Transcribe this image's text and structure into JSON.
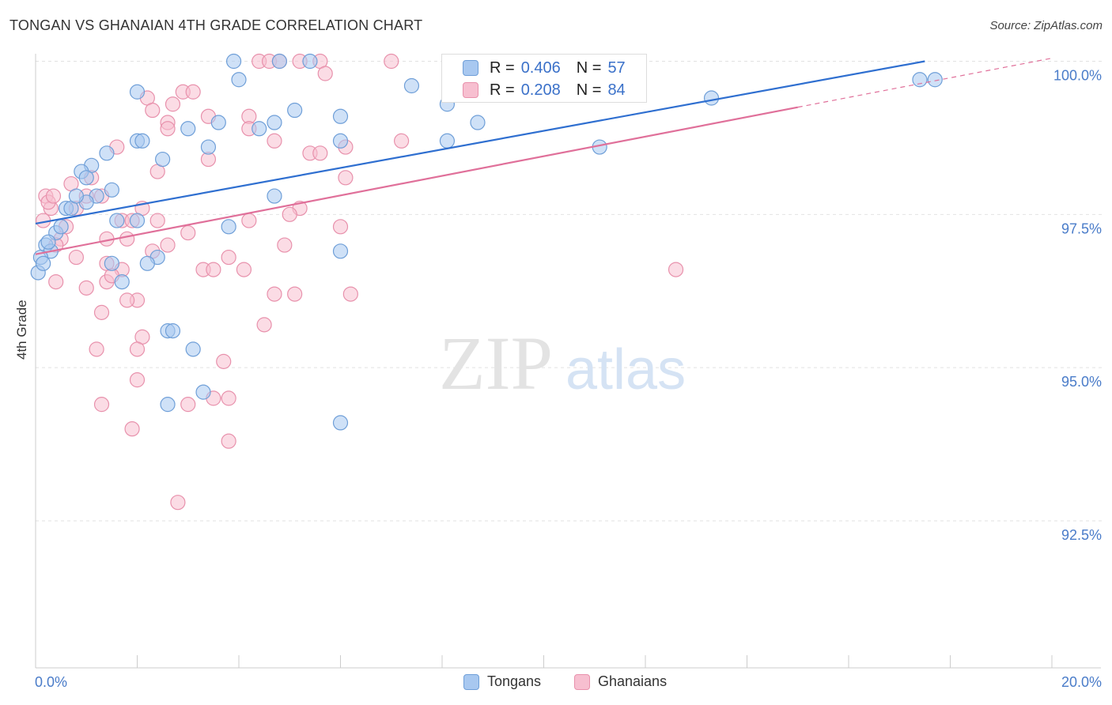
{
  "title": "TONGAN VS GHANAIAN 4TH GRADE CORRELATION CHART",
  "source": "Source: ZipAtlas.com",
  "watermark": {
    "part1": "ZIP",
    "part2": "atlas"
  },
  "stats": [
    {
      "r_label": "R =",
      "r_value": "0.406",
      "n_label": "N =",
      "n_value": "57",
      "color": "#a8c8f0",
      "border": "#6f9fd8"
    },
    {
      "r_label": "R =",
      "r_value": "0.208",
      "n_label": "N =",
      "n_value": "84",
      "color": "#f7bfd0",
      "border": "#e891ac"
    }
  ],
  "legend": [
    {
      "label": "Tongans",
      "color": "#a8c8f0",
      "border": "#6f9fd8"
    },
    {
      "label": "Ghanaians",
      "color": "#f7bfd0",
      "border": "#e891ac"
    }
  ],
  "chart_data": {
    "type": "scatter",
    "title": "TONGAN VS GHANAIAN 4TH GRADE CORRELATION CHART",
    "xlabel": "",
    "ylabel": "4th Grade",
    "xlim": [
      0,
      20
    ],
    "ylim": [
      90.1,
      100.2
    ],
    "x_tick_labels": [
      {
        "value": 0,
        "label": "0.0%"
      },
      {
        "value": 20,
        "label": "20.0%"
      }
    ],
    "y_tick_labels": [
      {
        "value": 100,
        "label": "100.0%"
      },
      {
        "value": 97.5,
        "label": "97.5%"
      },
      {
        "value": 95,
        "label": "95.0%"
      },
      {
        "value": 92.5,
        "label": "92.5%"
      }
    ],
    "grid": true,
    "colors": {
      "tongans_fill": "#a8c8f0",
      "tongans_stroke": "#6f9fd8",
      "tongans_line": "#2f6fd0",
      "ghanaians_fill": "#f7bfd0",
      "ghanaians_stroke": "#e891ac",
      "ghanaians_line": "#e0709a",
      "tick_label": "#4a7cc9"
    },
    "series": [
      {
        "name": "Tongans",
        "trend": {
          "x": [
            0,
            17.5
          ],
          "y": [
            97.35,
            100.0
          ]
        },
        "points": [
          [
            3.9,
            100.0
          ],
          [
            5.4,
            100.0
          ],
          [
            4.8,
            100.0
          ],
          [
            4.0,
            99.7
          ],
          [
            7.4,
            99.6
          ],
          [
            2.0,
            99.5
          ],
          [
            5.1,
            99.2
          ],
          [
            8.1,
            99.3
          ],
          [
            6.0,
            99.1
          ],
          [
            3.6,
            99.0
          ],
          [
            4.4,
            98.9
          ],
          [
            4.7,
            99.0
          ],
          [
            3.0,
            98.9
          ],
          [
            2.0,
            98.7
          ],
          [
            2.1,
            98.7
          ],
          [
            8.7,
            99.0
          ],
          [
            6.0,
            98.7
          ],
          [
            8.1,
            98.7
          ],
          [
            3.4,
            98.6
          ],
          [
            1.4,
            98.5
          ],
          [
            2.5,
            98.4
          ],
          [
            1.1,
            98.3
          ],
          [
            0.9,
            98.2
          ],
          [
            1.0,
            98.1
          ],
          [
            11.1,
            98.6
          ],
          [
            13.3,
            99.4
          ],
          [
            17.4,
            99.7
          ],
          [
            17.7,
            99.7
          ],
          [
            1.5,
            97.9
          ],
          [
            1.2,
            97.8
          ],
          [
            1.0,
            97.7
          ],
          [
            0.6,
            97.6
          ],
          [
            0.7,
            97.6
          ],
          [
            0.8,
            97.8
          ],
          [
            4.7,
            97.8
          ],
          [
            1.6,
            97.4
          ],
          [
            2.0,
            97.4
          ],
          [
            3.8,
            97.3
          ],
          [
            0.4,
            97.2
          ],
          [
            0.5,
            97.3
          ],
          [
            0.2,
            97.0
          ],
          [
            0.3,
            96.9
          ],
          [
            0.1,
            96.8
          ],
          [
            2.4,
            96.8
          ],
          [
            2.2,
            96.7
          ],
          [
            1.5,
            96.7
          ],
          [
            6.0,
            96.9
          ],
          [
            0.05,
            96.55
          ],
          [
            1.7,
            96.4
          ],
          [
            2.6,
            95.6
          ],
          [
            2.7,
            95.6
          ],
          [
            3.1,
            95.3
          ],
          [
            3.3,
            94.6
          ],
          [
            2.6,
            94.4
          ],
          [
            6.0,
            94.1
          ],
          [
            0.15,
            96.7
          ],
          [
            0.25,
            97.05
          ]
        ]
      },
      {
        "name": "Ghanaians",
        "trend": {
          "x": [
            0,
            15.0
          ],
          "y": [
            96.85,
            99.25
          ],
          "dashed_to": {
            "x": 20,
            "y": 100.05
          }
        },
        "points": [
          [
            4.4,
            100.0
          ],
          [
            4.6,
            100.0
          ],
          [
            5.2,
            100.0
          ],
          [
            5.6,
            100.0
          ],
          [
            4.8,
            100.0
          ],
          [
            7.0,
            100.0
          ],
          [
            5.7,
            99.8
          ],
          [
            2.9,
            99.5
          ],
          [
            3.1,
            99.5
          ],
          [
            2.2,
            99.4
          ],
          [
            2.7,
            99.3
          ],
          [
            2.3,
            99.2
          ],
          [
            4.2,
            99.1
          ],
          [
            3.4,
            99.1
          ],
          [
            2.6,
            99.0
          ],
          [
            2.6,
            98.9
          ],
          [
            4.2,
            98.9
          ],
          [
            4.7,
            98.7
          ],
          [
            7.2,
            98.7
          ],
          [
            1.6,
            98.6
          ],
          [
            6.1,
            98.6
          ],
          [
            5.4,
            98.5
          ],
          [
            5.6,
            98.5
          ],
          [
            2.4,
            98.2
          ],
          [
            6.1,
            98.1
          ],
          [
            0.7,
            98.0
          ],
          [
            1.0,
            97.8
          ],
          [
            1.3,
            97.8
          ],
          [
            0.2,
            97.8
          ],
          [
            0.3,
            97.6
          ],
          [
            0.8,
            97.6
          ],
          [
            2.1,
            97.6
          ],
          [
            5.2,
            97.6
          ],
          [
            5.0,
            97.5
          ],
          [
            1.7,
            97.4
          ],
          [
            1.9,
            97.4
          ],
          [
            2.4,
            97.4
          ],
          [
            4.2,
            97.4
          ],
          [
            6.0,
            97.3
          ],
          [
            1.4,
            97.1
          ],
          [
            1.8,
            97.1
          ],
          [
            3.0,
            97.2
          ],
          [
            0.5,
            97.1
          ],
          [
            0.4,
            97.0
          ],
          [
            4.9,
            97.0
          ],
          [
            2.6,
            97.0
          ],
          [
            0.8,
            96.8
          ],
          [
            1.4,
            96.7
          ],
          [
            1.7,
            96.6
          ],
          [
            3.3,
            96.6
          ],
          [
            3.5,
            96.6
          ],
          [
            4.1,
            96.6
          ],
          [
            12.6,
            96.6
          ],
          [
            0.4,
            96.4
          ],
          [
            1.4,
            96.4
          ],
          [
            1.0,
            96.3
          ],
          [
            2.0,
            96.1
          ],
          [
            1.8,
            96.1
          ],
          [
            4.7,
            96.2
          ],
          [
            5.1,
            96.2
          ],
          [
            6.2,
            96.2
          ],
          [
            1.3,
            95.9
          ],
          [
            4.5,
            95.7
          ],
          [
            2.1,
            95.5
          ],
          [
            1.2,
            95.3
          ],
          [
            2.0,
            95.3
          ],
          [
            3.7,
            95.1
          ],
          [
            2.0,
            94.8
          ],
          [
            3.5,
            94.5
          ],
          [
            3.8,
            94.5
          ],
          [
            3.0,
            94.4
          ],
          [
            1.3,
            94.4
          ],
          [
            1.9,
            94.0
          ],
          [
            3.8,
            93.8
          ],
          [
            2.8,
            92.8
          ],
          [
            0.15,
            97.4
          ],
          [
            0.25,
            97.7
          ],
          [
            0.35,
            97.8
          ],
          [
            1.1,
            98.1
          ],
          [
            3.4,
            98.4
          ],
          [
            0.6,
            97.3
          ],
          [
            1.5,
            96.5
          ],
          [
            2.3,
            96.9
          ],
          [
            3.8,
            96.8
          ]
        ]
      }
    ]
  }
}
